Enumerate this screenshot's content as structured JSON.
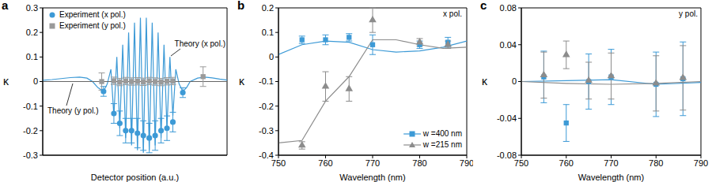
{
  "chart_data": [
    {
      "type": "scatter",
      "title": "a",
      "x_label": "Detector position (a.u.)",
      "y_label": "κ",
      "xlim": [
        0,
        100
      ],
      "ylim": [
        -0.3,
        0.3
      ],
      "yticks": [
        -0.3,
        -0.2,
        -0.1,
        0,
        0.1,
        0.2,
        0.3
      ],
      "tick_labels": "y",
      "legend": "upper left",
      "annotations": [
        "Theory (x pol.)",
        "Theory (y pol.)"
      ],
      "series": [
        {
          "type": "line",
          "color": "#3d9ad6",
          "line_style": "solid",
          "x": [
            0,
            5,
            10,
            15,
            20,
            24,
            27,
            30,
            33,
            35,
            37,
            38.6,
            40.2,
            41.8,
            43.4,
            45,
            46.6,
            48.2,
            49.8,
            51.4,
            53,
            54.6,
            56.2,
            57.8,
            59.4,
            61,
            62.6,
            64.2,
            65.8,
            67.4,
            69,
            70.6,
            72.2,
            74,
            76,
            78,
            80,
            84,
            88,
            92,
            96,
            100
          ],
          "values": [
            0.005,
            0.008,
            0.012,
            0.016,
            0.018,
            0.014,
            0.0,
            -0.025,
            -0.04,
            -0.01,
            0.05,
            -0.14,
            0.1,
            -0.19,
            0.15,
            -0.23,
            0.2,
            -0.26,
            0.24,
            -0.28,
            0.26,
            -0.29,
            0.26,
            -0.28,
            0.24,
            -0.26,
            0.2,
            -0.23,
            0.15,
            -0.19,
            0.1,
            -0.14,
            0.05,
            -0.01,
            -0.04,
            -0.025,
            0.0,
            0.014,
            0.018,
            0.015,
            0.01,
            0.006
          ]
        },
        {
          "type": "line",
          "color": "#666666",
          "line_style": "solid",
          "x": [
            0,
            100
          ],
          "values": [
            0,
            0
          ]
        },
        {
          "name": "Experiment (x pol.)",
          "type": "scatter",
          "color": "#3d9ad6",
          "marker": "circle",
          "x": [
            33,
            38.6,
            41.8,
            45,
            48.2,
            51.4,
            54.6,
            57.8,
            61,
            64.2,
            67.4,
            70.6,
            76
          ],
          "values": [
            -0.04,
            -0.13,
            -0.17,
            -0.2,
            -0.2,
            -0.21,
            -0.22,
            -0.23,
            -0.22,
            -0.2,
            -0.19,
            -0.165,
            -0.045
          ],
          "errors": [
            0.02,
            0.04,
            0.05,
            0.05,
            0.05,
            0.06,
            0.06,
            0.06,
            0.06,
            0.05,
            0.05,
            0.04,
            0.02
          ]
        },
        {
          "name": "Experiment (y pol.)",
          "type": "scatter",
          "color": "#9a9a9a",
          "marker": "square",
          "x": [
            32,
            38.6,
            41.8,
            45,
            48.2,
            51.4,
            54.6,
            57.8,
            61,
            64.2,
            67.4,
            70.6,
            87
          ],
          "values": [
            0,
            0.003,
            -0.002,
            0.002,
            0,
            0.001,
            -0.001,
            0.002,
            0,
            -0.002,
            0.001,
            0.002,
            0.02
          ],
          "errors": [
            0.035,
            0.015,
            0.015,
            0.015,
            0.015,
            0.015,
            0.015,
            0.015,
            0.015,
            0.015,
            0.015,
            0.015,
            0.04
          ]
        }
      ]
    },
    {
      "type": "scatter",
      "title": "b",
      "x_label": "Wavelength (nm)",
      "y_label": "κ",
      "xlim": [
        750,
        790
      ],
      "xticks": [
        750,
        760,
        770,
        780,
        790
      ],
      "ylim": [
        -0.4,
        0.2
      ],
      "yticks": [
        -0.4,
        -0.3,
        -0.2,
        -0.1,
        0,
        0.1,
        0.2
      ],
      "legend": "lower right",
      "annotations": [
        "x pol."
      ],
      "series": [
        {
          "name": "w =400 nm",
          "type": "scatter",
          "color": "#3d9ad6",
          "marker": "square",
          "x": [
            755,
            760,
            765,
            770,
            780,
            786
          ],
          "values": [
            0.07,
            0.07,
            0.08,
            0.05,
            0.05,
            0.06
          ],
          "errors": [
            0.015,
            0.02,
            0.015,
            0.04,
            0.015,
            0.02
          ],
          "theory_x": [
            750,
            755,
            760,
            765,
            770,
            775,
            780,
            785,
            790
          ],
          "theory_values": [
            0.01,
            0.05,
            0.065,
            0.06,
            0.03,
            0.02,
            0.025,
            0.04,
            0.065
          ]
        },
        {
          "name": "w =215 nm",
          "type": "scatter",
          "color": "#8c8c8c",
          "marker": "triangle",
          "x": [
            755,
            760,
            765,
            770,
            780,
            786
          ],
          "values": [
            -0.36,
            -0.12,
            -0.13,
            0.15,
            0.06,
            0.05
          ],
          "errors": [
            0.015,
            0.06,
            0.05,
            0.05,
            0.015,
            0.015
          ],
          "theory_x": [
            750,
            755,
            760,
            765,
            770,
            775,
            780,
            785,
            790
          ],
          "theory_values": [
            -0.35,
            -0.34,
            -0.18,
            -0.08,
            0.07,
            0.07,
            0.05,
            0.035,
            0.04
          ]
        }
      ]
    },
    {
      "type": "scatter",
      "title": "c",
      "x_label": "Wavelength (nm)",
      "y_label": "κ",
      "xlim": [
        750,
        790
      ],
      "xticks": [
        750,
        760,
        770,
        780,
        790
      ],
      "ylim": [
        -0.08,
        0.08
      ],
      "yticks": [
        -0.08,
        -0.04,
        0,
        0.04,
        0.08
      ],
      "annotations": [
        "y pol."
      ],
      "series": [
        {
          "type": "scatter",
          "color": "#3d9ad6",
          "marker": "square",
          "x": [
            755,
            760,
            765,
            770,
            780,
            786
          ],
          "values": [
            0.005,
            -0.045,
            0.0,
            0.005,
            -0.003,
            0.003
          ],
          "errors": [
            0.028,
            0.02,
            0.03,
            0.03,
            0.035,
            0.04
          ],
          "theory_x": [
            750,
            760,
            770,
            780,
            790
          ],
          "theory_values": [
            0,
            0.001,
            0.002,
            -0.003,
            -0.001
          ]
        },
        {
          "type": "scatter",
          "color": "#8c8c8c",
          "marker": "triangle",
          "x": [
            755,
            760,
            765,
            770,
            780,
            786
          ],
          "values": [
            0.007,
            0.029,
            0.001,
            0.006,
            -0.002,
            0.004
          ],
          "errors": [
            0.025,
            0.015,
            0.02,
            0.025,
            0.03,
            0.035
          ],
          "theory_x": [
            750,
            760,
            770,
            780,
            790
          ],
          "theory_values": [
            0,
            -0.002,
            -0.003,
            -0.002,
            0
          ]
        }
      ]
    }
  ]
}
